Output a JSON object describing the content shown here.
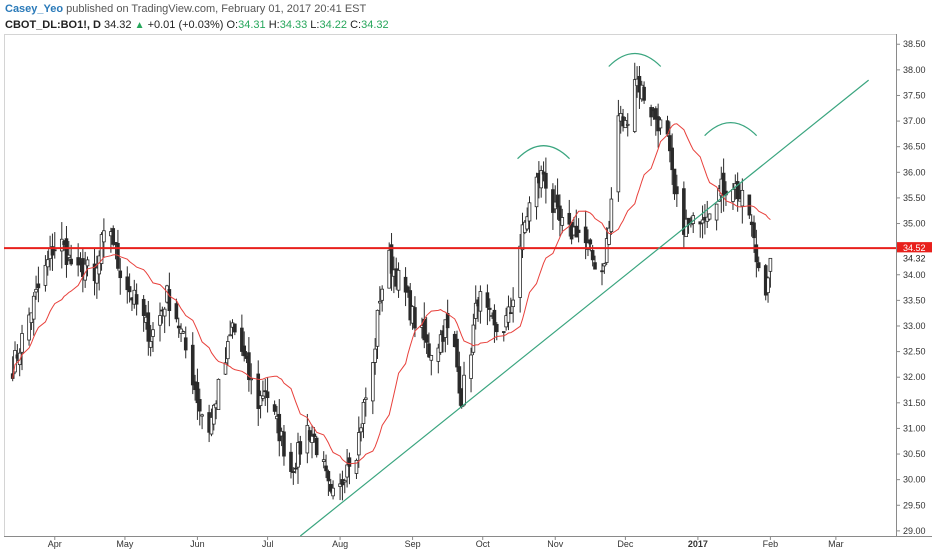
{
  "header": {
    "author": "Casey_Yeo",
    "published_text": "published on TradingView.com, February 01, 2017 20:41 EST",
    "symbol": "CBOT_DL:BO1!, D",
    "last": "34.32",
    "change": "+0.01 (+0.03%)",
    "open_label": "O:",
    "open": "34.31",
    "high_label": "H:",
    "high": "34.33",
    "low_label": "L:",
    "low": "34.22",
    "close_label": "C:",
    "close": "34.32"
  },
  "colors": {
    "up": "#2a2a2a",
    "down": "#2a2a2a",
    "ma": "#e8413c",
    "resistance": "#e8201c",
    "trendline": "#3aa57f",
    "arcs": "#3aa57f",
    "tag_red": "#e8201c",
    "tag_last": "#ffffff"
  },
  "chart_data": {
    "type": "candlestick",
    "ylim": [
      28.9,
      38.7
    ],
    "y_ticks": [
      "29.00",
      "29.50",
      "30.00",
      "30.50",
      "31.00",
      "31.50",
      "32.00",
      "32.50",
      "33.00",
      "33.50",
      "34.00",
      "34.50",
      "35.00",
      "35.50",
      "36.00",
      "36.50",
      "37.00",
      "37.50",
      "38.00",
      "38.50"
    ],
    "x_ticks": [
      "Apr",
      "May",
      "Jun",
      "Jul",
      "Aug",
      "Sep",
      "Oct",
      "Nov",
      "Dec",
      "2017",
      "Feb",
      "Mar"
    ],
    "x_ticks_bold": [
      "2017"
    ],
    "resistance_level": 34.52,
    "resistance_label": "34.52",
    "last_price": 34.32,
    "last_label": "34.32",
    "trendline": {
      "from": [
        "2016-07-15",
        28.9
      ],
      "to": [
        "2017-03-15",
        37.8
      ]
    },
    "arcs": [
      {
        "center": "2016-10-27",
        "level": 36.5
      },
      {
        "center": "2016-12-05",
        "level": 38.3
      },
      {
        "center": "2017-01-15",
        "level": 36.95
      }
    ],
    "closes": [
      {
        "d": "2016-03-14",
        "c": 32.2
      },
      {
        "d": "2016-03-17",
        "c": 32.6
      },
      {
        "d": "2016-03-21",
        "c": 33.2
      },
      {
        "d": "2016-03-24",
        "c": 33.6
      },
      {
        "d": "2016-03-28",
        "c": 34.1
      },
      {
        "d": "2016-03-31",
        "c": 34.5
      },
      {
        "d": "2016-04-04",
        "c": 34.6
      },
      {
        "d": "2016-04-07",
        "c": 34.3
      },
      {
        "d": "2016-04-11",
        "c": 34.0
      },
      {
        "d": "2016-04-14",
        "c": 34.2
      },
      {
        "d": "2016-04-18",
        "c": 33.8
      },
      {
        "d": "2016-04-21",
        "c": 34.6
      },
      {
        "d": "2016-04-25",
        "c": 34.9
      },
      {
        "d": "2016-04-28",
        "c": 34.2
      },
      {
        "d": "2016-05-02",
        "c": 33.8
      },
      {
        "d": "2016-05-05",
        "c": 33.5
      },
      {
        "d": "2016-05-09",
        "c": 33.1
      },
      {
        "d": "2016-05-12",
        "c": 32.8
      },
      {
        "d": "2016-05-16",
        "c": 33.2
      },
      {
        "d": "2016-05-19",
        "c": 33.6
      },
      {
        "d": "2016-05-23",
        "c": 33.2
      },
      {
        "d": "2016-05-26",
        "c": 32.7
      },
      {
        "d": "2016-05-30",
        "c": 32.0
      },
      {
        "d": "2016-06-02",
        "c": 31.4
      },
      {
        "d": "2016-06-06",
        "c": 31.0
      },
      {
        "d": "2016-06-09",
        "c": 31.6
      },
      {
        "d": "2016-06-13",
        "c": 32.3
      },
      {
        "d": "2016-06-16",
        "c": 33.0
      },
      {
        "d": "2016-06-20",
        "c": 32.5
      },
      {
        "d": "2016-06-23",
        "c": 32.0
      },
      {
        "d": "2016-06-27",
        "c": 31.5
      },
      {
        "d": "2016-06-30",
        "c": 31.8
      },
      {
        "d": "2016-07-04",
        "c": 31.2
      },
      {
        "d": "2016-07-07",
        "c": 30.8
      },
      {
        "d": "2016-07-11",
        "c": 30.2
      },
      {
        "d": "2016-07-14",
        "c": 30.5
      },
      {
        "d": "2016-07-18",
        "c": 31.0
      },
      {
        "d": "2016-07-21",
        "c": 30.8
      },
      {
        "d": "2016-07-25",
        "c": 30.2
      },
      {
        "d": "2016-07-28",
        "c": 29.6
      },
      {
        "d": "2016-08-01",
        "c": 29.8
      },
      {
        "d": "2016-08-04",
        "c": 30.4
      },
      {
        "d": "2016-08-08",
        "c": 30.6
      },
      {
        "d": "2016-08-11",
        "c": 31.4
      },
      {
        "d": "2016-08-15",
        "c": 32.2
      },
      {
        "d": "2016-08-18",
        "c": 33.6
      },
      {
        "d": "2016-08-22",
        "c": 34.3
      },
      {
        "d": "2016-08-25",
        "c": 34.0
      },
      {
        "d": "2016-08-29",
        "c": 33.6
      },
      {
        "d": "2016-09-01",
        "c": 33.2
      },
      {
        "d": "2016-09-05",
        "c": 32.8
      },
      {
        "d": "2016-09-08",
        "c": 32.5
      },
      {
        "d": "2016-09-12",
        "c": 32.7
      },
      {
        "d": "2016-09-15",
        "c": 33.0
      },
      {
        "d": "2016-09-19",
        "c": 32.5
      },
      {
        "d": "2016-09-22",
        "c": 31.6
      },
      {
        "d": "2016-09-26",
        "c": 32.6
      },
      {
        "d": "2016-09-29",
        "c": 33.6
      },
      {
        "d": "2016-10-03",
        "c": 33.2
      },
      {
        "d": "2016-10-06",
        "c": 32.9
      },
      {
        "d": "2016-10-10",
        "c": 33.0
      },
      {
        "d": "2016-10-13",
        "c": 33.3
      },
      {
        "d": "2016-10-17",
        "c": 34.6
      },
      {
        "d": "2016-10-20",
        "c": 35.2
      },
      {
        "d": "2016-10-24",
        "c": 35.8
      },
      {
        "d": "2016-10-27",
        "c": 36.0
      },
      {
        "d": "2016-10-31",
        "c": 35.3
      },
      {
        "d": "2016-11-03",
        "c": 35.0
      },
      {
        "d": "2016-11-07",
        "c": 34.8
      },
      {
        "d": "2016-11-10",
        "c": 34.9
      },
      {
        "d": "2016-11-14",
        "c": 34.6
      },
      {
        "d": "2016-11-17",
        "c": 34.3
      },
      {
        "d": "2016-11-21",
        "c": 34.1
      },
      {
        "d": "2016-11-24",
        "c": 34.9
      },
      {
        "d": "2016-11-28",
        "c": 37.1
      },
      {
        "d": "2016-12-01",
        "c": 36.9
      },
      {
        "d": "2016-12-05",
        "c": 37.9
      },
      {
        "d": "2016-12-08",
        "c": 37.6
      },
      {
        "d": "2016-12-12",
        "c": 37.2
      },
      {
        "d": "2016-12-15",
        "c": 37.0
      },
      {
        "d": "2016-12-19",
        "c": 36.6
      },
      {
        "d": "2016-12-22",
        "c": 35.5
      },
      {
        "d": "2016-12-26",
        "c": 35.0
      },
      {
        "d": "2016-12-29",
        "c": 34.9
      },
      {
        "d": "2017-01-02",
        "c": 35.2
      },
      {
        "d": "2017-01-05",
        "c": 35.3
      },
      {
        "d": "2017-01-09",
        "c": 35.6
      },
      {
        "d": "2017-01-12",
        "c": 35.7
      },
      {
        "d": "2017-01-16",
        "c": 35.8
      },
      {
        "d": "2017-01-19",
        "c": 35.5
      },
      {
        "d": "2017-01-23",
        "c": 35.2
      },
      {
        "d": "2017-01-26",
        "c": 34.3
      },
      {
        "d": "2017-01-30",
        "c": 33.8
      },
      {
        "d": "2017-02-01",
        "c": 34.32
      }
    ]
  }
}
